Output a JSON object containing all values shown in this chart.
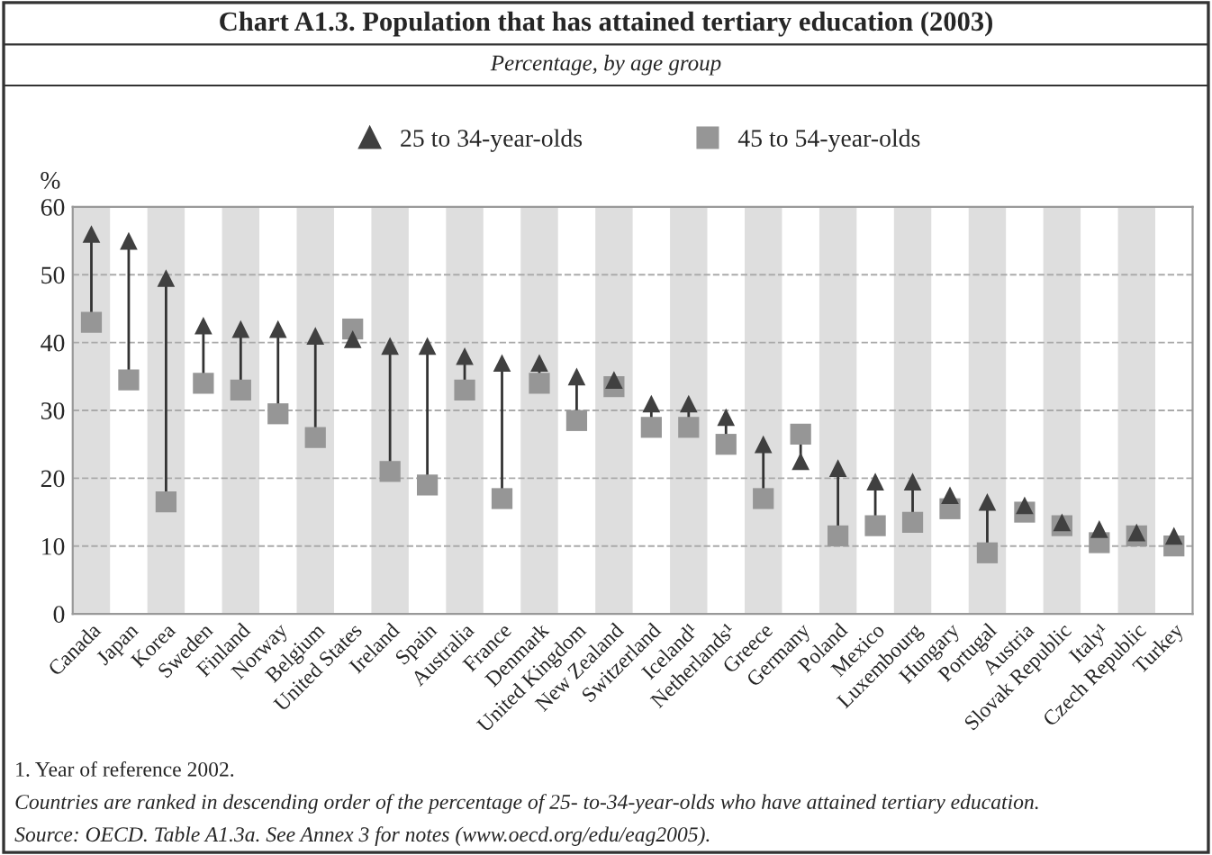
{
  "chart_data": {
    "type": "scatter",
    "title": "Chart A1.3. Population that has attained tertiary education (2003)",
    "subtitle": "Percentage, by age group",
    "ylabel": "%",
    "categories": [
      "Canada",
      "Japan",
      "Korea",
      "Sweden",
      "Finland",
      "Norway",
      "Belgium",
      "United States",
      "Ireland",
      "Spain",
      "Australia",
      "France",
      "Denmark",
      "United Kingdom",
      "New Zealand",
      "Switzerland",
      "Iceland¹",
      "Netherlands¹",
      "Greece",
      "Germany",
      "Poland",
      "Mexico",
      "Luxembourg",
      "Hungary",
      "Portugal",
      "Austria",
      "Slovak Republic",
      "Italy¹",
      "Czech Republic",
      "Turkey"
    ],
    "series": [
      {
        "name": "25 to 34-year-olds",
        "color": "#404040",
        "marker": "triangle",
        "values": [
          56,
          55,
          49.5,
          42.5,
          42,
          42,
          41,
          40.5,
          39.5,
          39.5,
          38,
          37,
          37,
          35,
          34.5,
          31,
          31,
          29,
          25,
          22.5,
          21.5,
          19.5,
          19.5,
          17.5,
          16.5,
          16,
          13.5,
          12.5,
          12,
          11.5
        ]
      },
      {
        "name": "45 to 54-year-olds",
        "color": "#969696",
        "marker": "square",
        "values": [
          43,
          34.5,
          16.5,
          34,
          33,
          29.5,
          26,
          42,
          21,
          19,
          33,
          17,
          34,
          28.5,
          33.5,
          27.5,
          27.5,
          25,
          17,
          26.5,
          11.5,
          13,
          13.5,
          15.5,
          9,
          15,
          13,
          10.5,
          11.5,
          10
        ]
      }
    ],
    "ylim": [
      0,
      60
    ],
    "yticks": [
      0,
      10,
      20,
      30,
      40,
      50,
      60
    ],
    "grid": "y",
    "legend": "top",
    "annotations": [
      "1. Year of reference 2002.",
      "Countries are ranked in descending order of the percentage of 25- to-34-year-olds who have attained tertiary education.",
      "Source: OECD. Table A1.3a. See Annex 3 for notes (www.oecd.org/edu/eag2005)."
    ]
  }
}
